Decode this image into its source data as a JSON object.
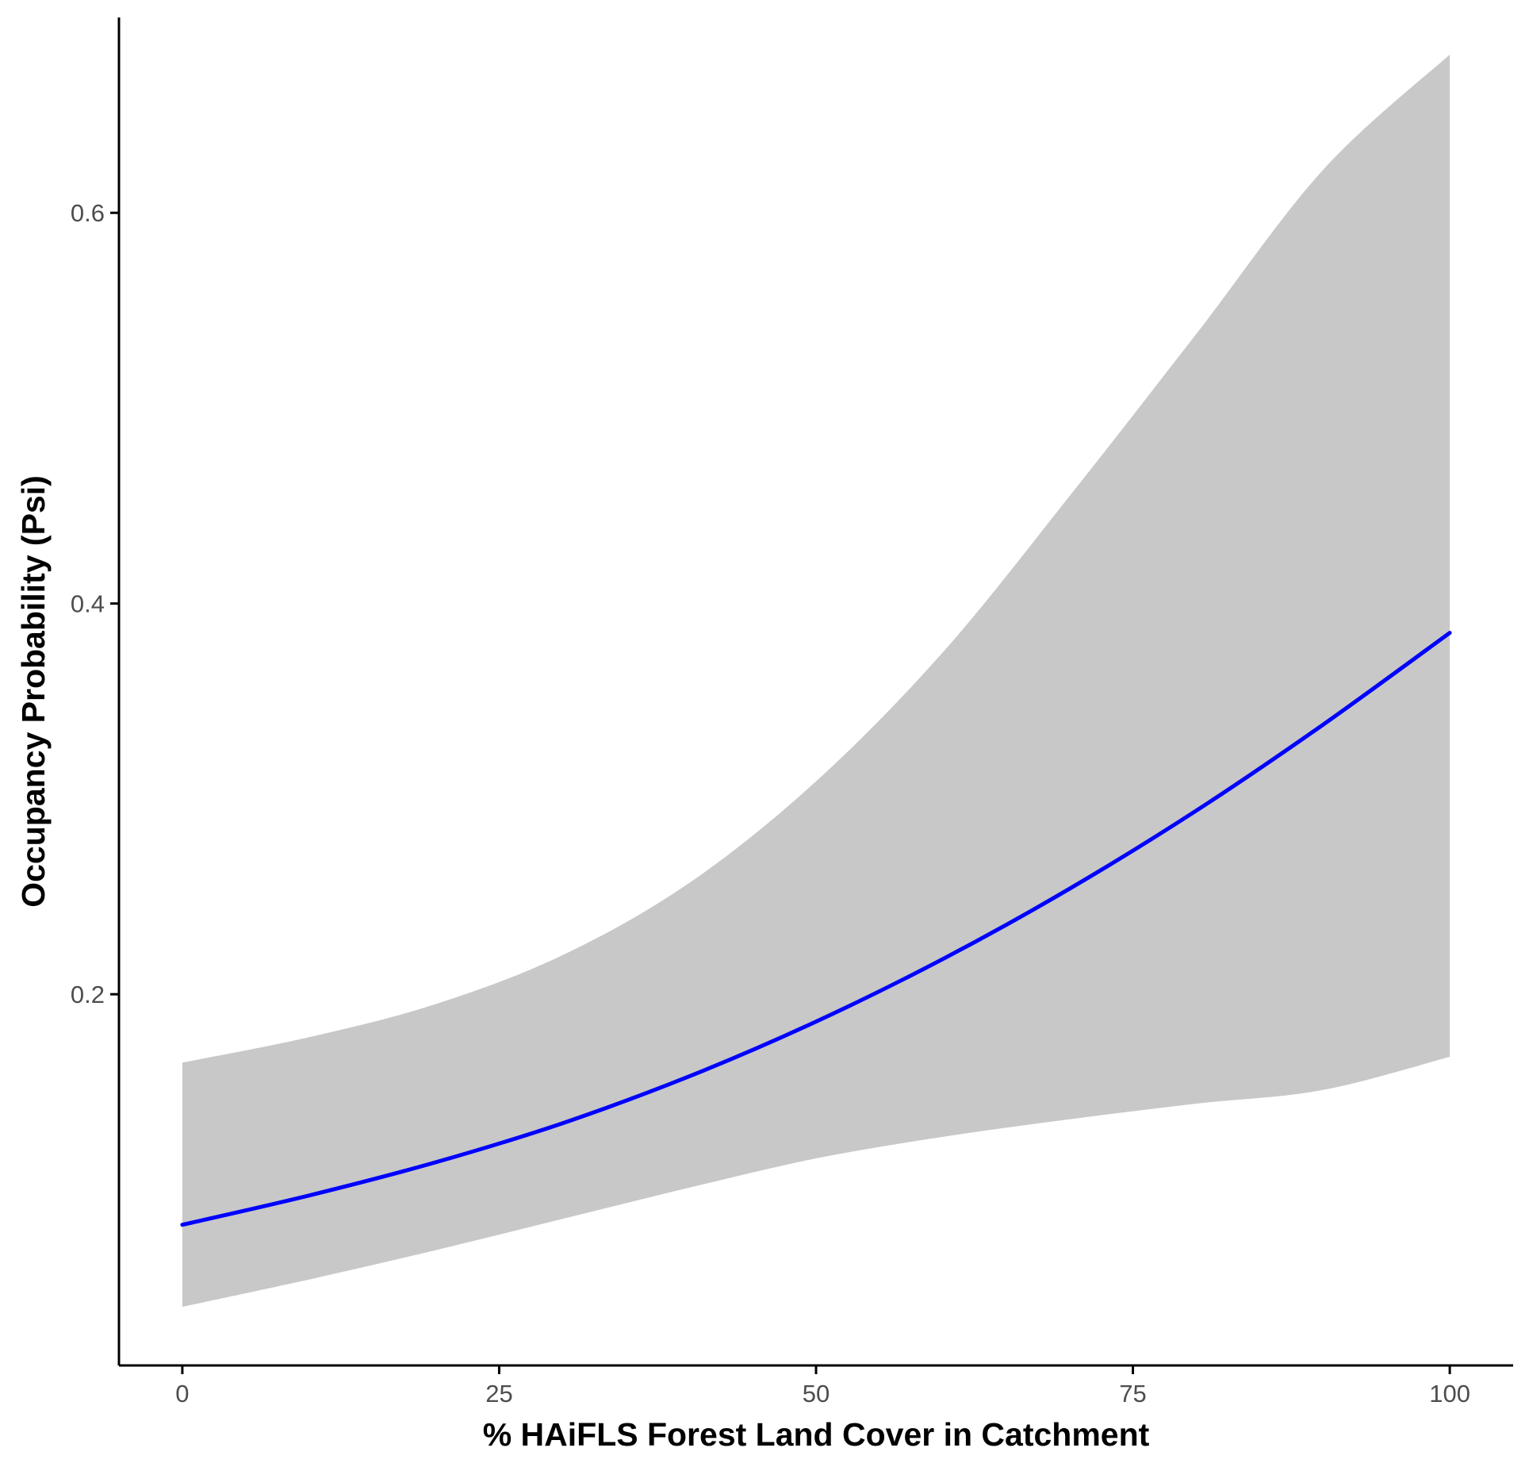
{
  "chart_data": {
    "type": "line",
    "title": "",
    "xlabel": "% HAiFLS Forest Land Cover in Catchment",
    "ylabel": "Occupancy Probability (Psi)",
    "xlim": [
      -5,
      105
    ],
    "ylim": [
      0.01,
      0.7
    ],
    "x_ticks": [
      0,
      25,
      50,
      75,
      100
    ],
    "x_tick_labels": [
      "0",
      "25",
      "50",
      "75",
      "100"
    ],
    "y_ticks": [
      0.2,
      0.4,
      0.6
    ],
    "y_tick_labels": [
      "0.2",
      "0.4",
      "0.6"
    ],
    "grid": false,
    "legend": "none",
    "colors": {
      "line": "#0000ff",
      "band": "#c8c8c8",
      "axis": "#000000"
    },
    "series": [
      {
        "x": [
          0,
          10,
          20,
          30,
          40,
          50,
          60,
          70,
          80,
          90,
          100
        ],
        "values": [
          0.082,
          0.097,
          0.114,
          0.134,
          0.158,
          0.186,
          0.218,
          0.254,
          0.294,
          0.338,
          0.385
        ],
        "lower": [
          0.04,
          0.054,
          0.069,
          0.085,
          0.101,
          0.116,
          0.127,
          0.136,
          0.144,
          0.151,
          0.168
        ],
        "upper": [
          0.165,
          0.178,
          0.195,
          0.22,
          0.257,
          0.309,
          0.375,
          0.455,
          0.538,
          0.622,
          0.681
        ]
      }
    ]
  }
}
